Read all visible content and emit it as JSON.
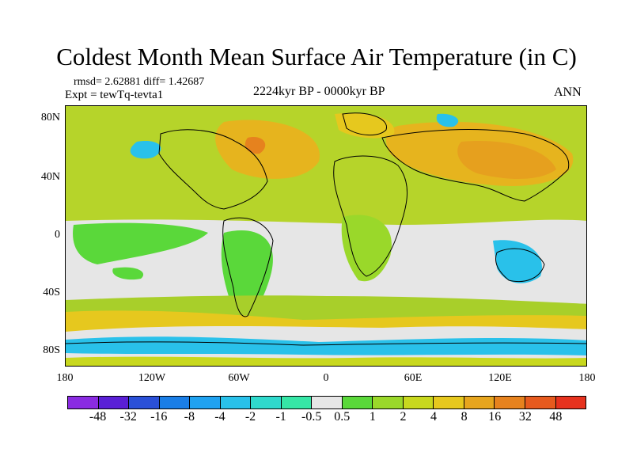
{
  "title": "Coldest Month Mean Surface Air Temperature (in C)",
  "stats": "rmsd= 2.62881 diff= 1.42687",
  "experiment": "Expt = tewTq-tevta1",
  "period": "2224kyr BP - 0000kyr BP",
  "season": "ANN",
  "axes": {
    "y_ticks": [
      "80N",
      "40N",
      "0",
      "40S",
      "80S"
    ],
    "x_ticks": [
      "180",
      "120W",
      "60W",
      "0",
      "60E",
      "120E",
      "180"
    ]
  },
  "colorbar": {
    "colors": [
      "#8a2be2",
      "#5a1fd6",
      "#2a50d8",
      "#1a7ee6",
      "#1fa2f0",
      "#29c1ea",
      "#2fd9cc",
      "#36e6a6",
      "#e6e6e6",
      "#5ad83a",
      "#9ad82a",
      "#c8d81e",
      "#e6c81e",
      "#e6a51e",
      "#e6821e",
      "#e65a1e",
      "#e6321e"
    ],
    "labels": [
      "-48",
      "-32",
      "-16",
      "-8",
      "-4",
      "-2",
      "-1",
      "-0.5",
      "0.5",
      "1",
      "2",
      "4",
      "8",
      "16",
      "32",
      "48"
    ]
  }
}
